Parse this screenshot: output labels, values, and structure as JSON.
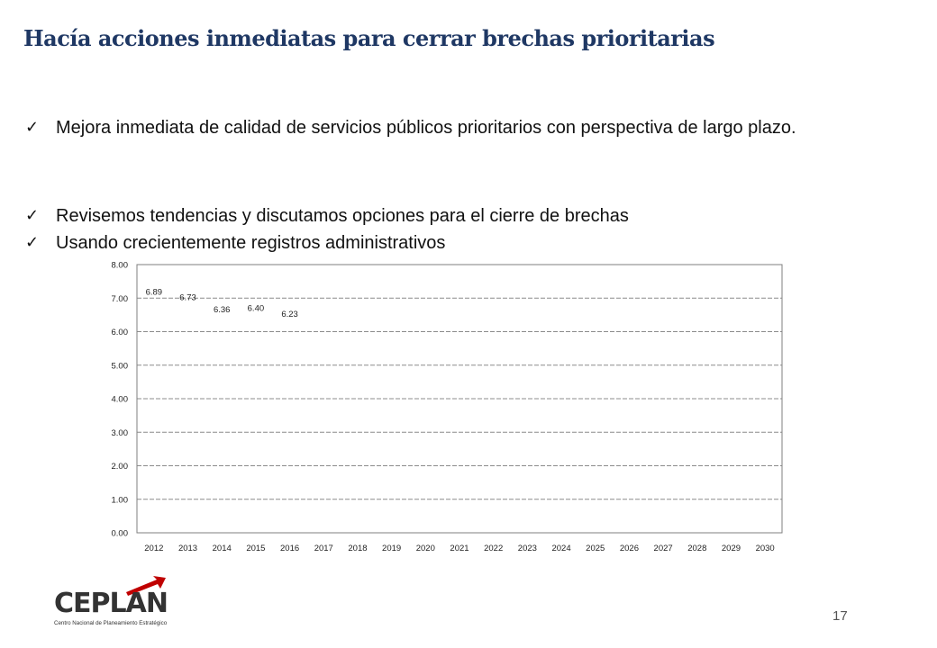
{
  "slide": {
    "title": "Hacía acciones inmediatas para cerrar brechas prioritarias",
    "bullets": [
      {
        "icon": "check-icon",
        "text": "Mejora inmediata de calidad de servicios públicos prioritarios con perspectiva de largo plazo."
      },
      {
        "icon": "check-icon",
        "text": "Revisemos tendencias y discutamos opciones para el cierre de brechas"
      },
      {
        "icon": "check-icon",
        "text": "Usando crecientemente registros administrativos"
      }
    ],
    "page_number": "17"
  },
  "logo": {
    "text": "CEPLAN",
    "subtitle": "Centro Nacional de Planeamiento Estratégico",
    "accent_color": "#c00000",
    "text_color": "#333333"
  },
  "chart_data": {
    "type": "scatter",
    "x": [
      2012,
      2013,
      2014,
      2015,
      2016
    ],
    "y": [
      6.89,
      6.73,
      6.36,
      6.4,
      6.23
    ],
    "data_labels": [
      "6.89",
      "6.73",
      "6.36",
      "6.40",
      "6.23"
    ],
    "categories": [
      "2012",
      "2013",
      "2014",
      "2015",
      "2016",
      "2017",
      "2018",
      "2019",
      "2020",
      "2021",
      "2022",
      "2023",
      "2024",
      "2025",
      "2026",
      "2027",
      "2028",
      "2029",
      "2030"
    ],
    "yticks": [
      "0.00",
      "1.00",
      "2.00",
      "3.00",
      "4.00",
      "5.00",
      "6.00",
      "7.00",
      "8.00"
    ],
    "ylim": [
      0,
      8
    ],
    "title": "",
    "xlabel": "",
    "ylabel": "",
    "grid": true,
    "legend": "none",
    "colors": {
      "grid": "#8c8c8c",
      "border": "#7f7f7f",
      "label": "#222222"
    }
  }
}
